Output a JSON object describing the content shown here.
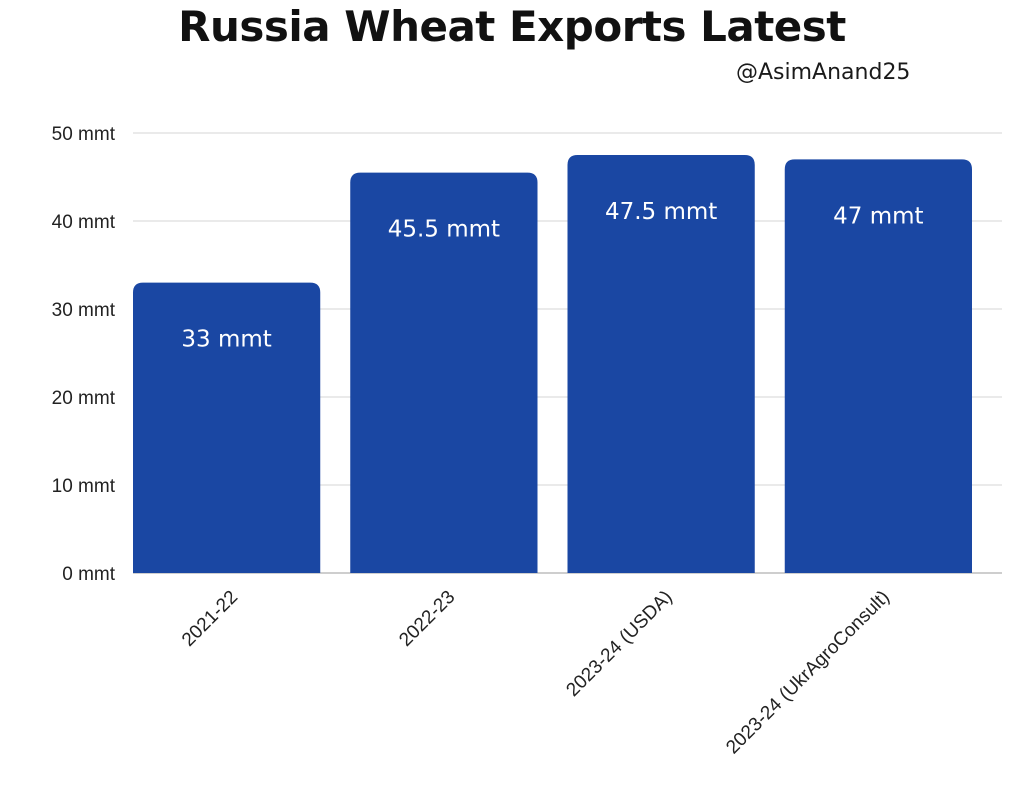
{
  "header": {
    "title": "Russia Wheat Exports Latest",
    "handle": "@AsimAnand25"
  },
  "chart_data": {
    "type": "bar",
    "title": "Russia Wheat Exports Latest",
    "xlabel": "",
    "ylabel": "",
    "categories": [
      "2021-22",
      "2022-23",
      "2023-24 (USDA)",
      "2023-24 (UkrAgroConsult)"
    ],
    "values": [
      33,
      45.5,
      47.5,
      47
    ],
    "data_labels": [
      "33 mmt",
      "45.5 mmt",
      "47.5 mmt",
      "47 mmt"
    ],
    "ylim": [
      0,
      50
    ],
    "yticks": [
      0,
      10,
      20,
      30,
      40,
      50
    ],
    "ytick_labels": [
      "0 mmt",
      "10 mmt",
      "20 mmt",
      "30 mmt",
      "40 mmt",
      "50 mmt"
    ],
    "unit": "mmt",
    "grid": true,
    "legend": "none",
    "bar_color": "#1a47a3"
  }
}
